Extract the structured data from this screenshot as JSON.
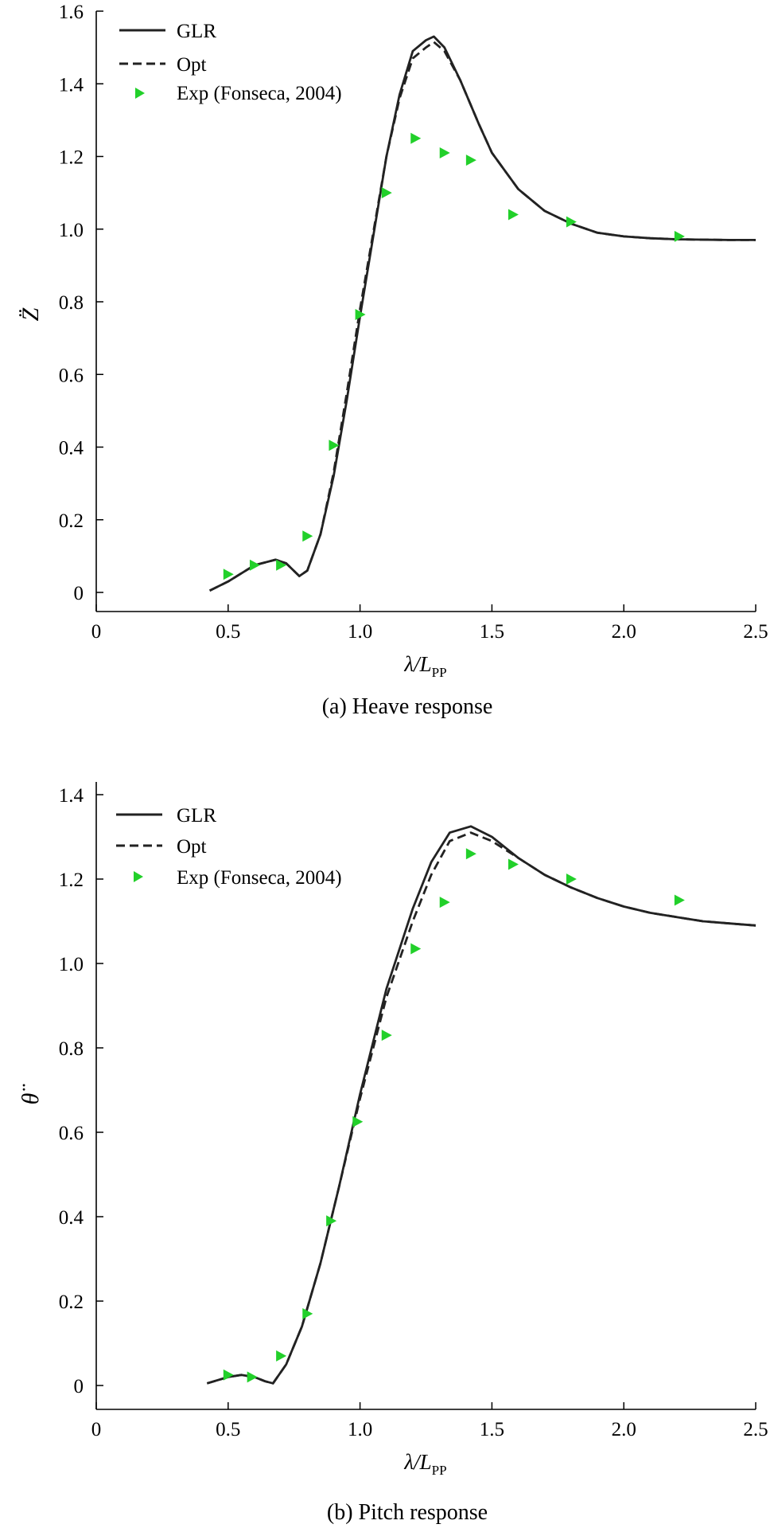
{
  "chart_data": [
    {
      "type": "line",
      "caption": "(a) Heave response",
      "xlabel": "λ/L",
      "xlabel_sub": "PP",
      "ylabel": "Z̈",
      "xlim": [
        0,
        2.5
      ],
      "ylim": [
        0,
        1.6
      ],
      "xticks": [
        0,
        0.5,
        1.0,
        1.5,
        2.0,
        2.5
      ],
      "xtick_labels": [
        "0",
        "0.5",
        "1.0",
        "1.5",
        "2.0",
        "2.5"
      ],
      "yticks": [
        0,
        0.2,
        0.4,
        0.6,
        0.8,
        1.0,
        1.2,
        1.4,
        1.6
      ],
      "ytick_labels": [
        "0",
        "0.2",
        "0.4",
        "0.6",
        "0.8",
        "1.0",
        "1.2",
        "1.4",
        "1.6"
      ],
      "legend_position": "top-left",
      "series": [
        {
          "name": "GLR",
          "style": "solid",
          "color": "#222222",
          "x": [
            0.43,
            0.5,
            0.6,
            0.68,
            0.72,
            0.77,
            0.8,
            0.85,
            0.9,
            0.95,
            1.0,
            1.05,
            1.1,
            1.15,
            1.2,
            1.25,
            1.28,
            1.32,
            1.38,
            1.45,
            1.5,
            1.55,
            1.6,
            1.7,
            1.8,
            1.9,
            2.0,
            2.1,
            2.2,
            2.3,
            2.4,
            2.5
          ],
          "y": [
            0.005,
            0.03,
            0.075,
            0.09,
            0.08,
            0.045,
            0.06,
            0.16,
            0.32,
            0.53,
            0.76,
            0.98,
            1.2,
            1.37,
            1.49,
            1.52,
            1.53,
            1.5,
            1.41,
            1.29,
            1.21,
            1.16,
            1.11,
            1.05,
            1.015,
            0.99,
            0.98,
            0.975,
            0.972,
            0.971,
            0.97,
            0.97
          ]
        },
        {
          "name": "Opt",
          "style": "dashed",
          "color": "#222222",
          "x": [
            0.43,
            0.5,
            0.6,
            0.68,
            0.72,
            0.77,
            0.8,
            0.85,
            0.9,
            0.95,
            1.0,
            1.05,
            1.1,
            1.15,
            1.2,
            1.25,
            1.28,
            1.32,
            1.38,
            1.45,
            1.5,
            1.55,
            1.6,
            1.7,
            1.8,
            1.9,
            2.0,
            2.1,
            2.2,
            2.3,
            2.4,
            2.5
          ],
          "y": [
            0.005,
            0.03,
            0.075,
            0.09,
            0.08,
            0.045,
            0.06,
            0.16,
            0.33,
            0.55,
            0.78,
            0.99,
            1.2,
            1.36,
            1.47,
            1.5,
            1.515,
            1.49,
            1.41,
            1.29,
            1.21,
            1.16,
            1.11,
            1.05,
            1.015,
            0.99,
            0.98,
            0.975,
            0.972,
            0.971,
            0.97,
            0.97
          ]
        },
        {
          "name": "Exp (Fonseca, 2004)",
          "style": "marker",
          "color": "#22d02a",
          "x": [
            0.5,
            0.6,
            0.7,
            0.8,
            0.9,
            1.0,
            1.1,
            1.21,
            1.32,
            1.42,
            1.58,
            1.8,
            2.21
          ],
          "y": [
            0.05,
            0.075,
            0.075,
            0.155,
            0.405,
            0.765,
            1.1,
            1.25,
            1.21,
            1.19,
            1.04,
            1.02,
            0.98
          ]
        }
      ]
    },
    {
      "type": "line",
      "caption": "(b) Pitch response",
      "xlabel": "λ/L",
      "xlabel_sub": "PP",
      "ylabel": "θ̈",
      "xlim": [
        0,
        2.5
      ],
      "ylim": [
        -0.05,
        1.4
      ],
      "xticks": [
        0,
        0.5,
        1.0,
        1.5,
        2.0,
        2.5
      ],
      "xtick_labels": [
        "0",
        "0.5",
        "1.0",
        "1.5",
        "2.0",
        "2.5"
      ],
      "yticks": [
        0,
        0.2,
        0.4,
        0.6,
        0.8,
        1.0,
        1.2,
        1.4
      ],
      "ytick_labels": [
        "0",
        "0.2",
        "0.4",
        "0.6",
        "0.8",
        "1.0",
        "1.2",
        "1.4"
      ],
      "legend_position": "top-left",
      "series": [
        {
          "name": "GLR",
          "style": "solid",
          "color": "#222222",
          "x": [
            0.42,
            0.5,
            0.55,
            0.6,
            0.64,
            0.67,
            0.72,
            0.78,
            0.85,
            0.92,
            1.0,
            1.1,
            1.2,
            1.27,
            1.34,
            1.42,
            1.5,
            1.6,
            1.7,
            1.8,
            1.9,
            2.0,
            2.1,
            2.2,
            2.3,
            2.4,
            2.5
          ],
          "y": [
            0.005,
            0.02,
            0.025,
            0.02,
            0.01,
            0.005,
            0.05,
            0.14,
            0.29,
            0.47,
            0.69,
            0.94,
            1.13,
            1.24,
            1.31,
            1.325,
            1.3,
            1.25,
            1.21,
            1.18,
            1.155,
            1.135,
            1.12,
            1.11,
            1.1,
            1.095,
            1.09
          ]
        },
        {
          "name": "Opt",
          "style": "dashed",
          "color": "#222222",
          "x": [
            0.42,
            0.5,
            0.55,
            0.6,
            0.64,
            0.67,
            0.72,
            0.78,
            0.85,
            0.92,
            1.0,
            1.1,
            1.2,
            1.27,
            1.34,
            1.42,
            1.5,
            1.6,
            1.7,
            1.8,
            1.9,
            2.0,
            2.1,
            2.2,
            2.3,
            2.4,
            2.5
          ],
          "y": [
            0.005,
            0.02,
            0.025,
            0.02,
            0.01,
            0.005,
            0.05,
            0.14,
            0.29,
            0.47,
            0.68,
            0.92,
            1.1,
            1.21,
            1.29,
            1.31,
            1.29,
            1.25,
            1.21,
            1.18,
            1.155,
            1.135,
            1.12,
            1.11,
            1.1,
            1.095,
            1.09
          ]
        },
        {
          "name": "Exp (Fonseca, 2004)",
          "style": "marker",
          "color": "#22d02a",
          "x": [
            0.5,
            0.59,
            0.7,
            0.8,
            0.89,
            0.99,
            1.1,
            1.21,
            1.32,
            1.42,
            1.58,
            1.8,
            2.21
          ],
          "y": [
            0.025,
            0.02,
            0.07,
            0.17,
            0.39,
            0.625,
            0.83,
            1.035,
            1.145,
            1.26,
            1.235,
            1.2,
            1.15
          ]
        }
      ]
    }
  ]
}
